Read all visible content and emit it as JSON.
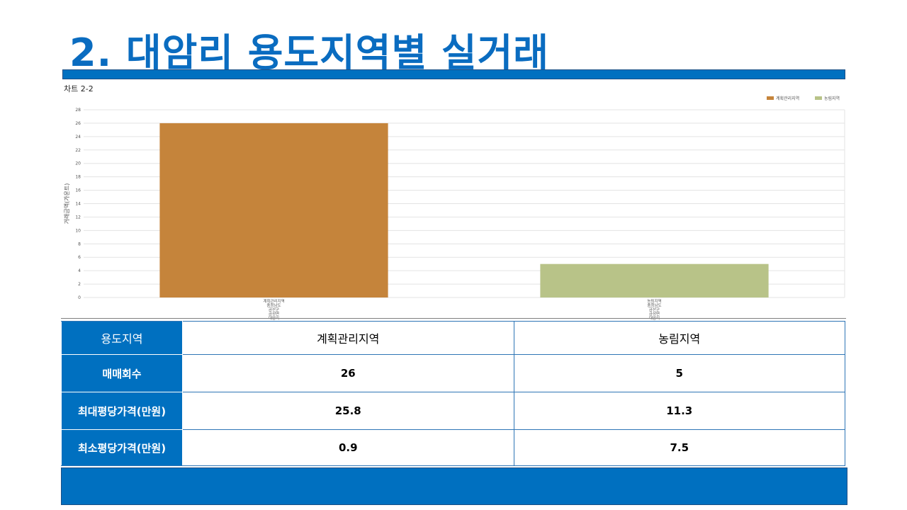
{
  "title": "2. 대암리 용도지역별 실거래",
  "chart_caption": "차트 2-2",
  "chart_data": {
    "type": "bar",
    "categories": [
      "계획관리지역",
      "농림지역"
    ],
    "category_label_lines": [
      [
        "계획관리지역",
        "충청남도",
        "금산군",
        "금성면",
        "대암리"
      ],
      [
        "농림지역",
        "충청남도",
        "금산군",
        "금성면",
        "대암리"
      ]
    ],
    "values": [
      26,
      5
    ],
    "colors": [
      "#c5843b",
      "#b8c388"
    ],
    "ylabel": "거래금액(가운트)",
    "ylim": [
      0,
      28
    ],
    "yticks": [
      0,
      2,
      4,
      6,
      8,
      10,
      12,
      14,
      16,
      18,
      20,
      22,
      24,
      26,
      28
    ],
    "grid": true,
    "legend_position": "top-right",
    "legend": [
      "계획관리지역",
      "농림지역"
    ]
  },
  "table": {
    "header_label": "용도지역",
    "columns": [
      "계획관리지역",
      "농림지역"
    ],
    "rows": [
      {
        "label": "매매회수",
        "values": [
          "26",
          "5"
        ]
      },
      {
        "label": "최대평당가격(만원)",
        "values": [
          "25.8",
          "11.3"
        ]
      },
      {
        "label": "최소평당가격(만원)",
        "values": [
          "0.9",
          "7.5"
        ]
      }
    ]
  },
  "colors": {
    "accent": "#0070c0",
    "title": "#0a6cc0"
  }
}
